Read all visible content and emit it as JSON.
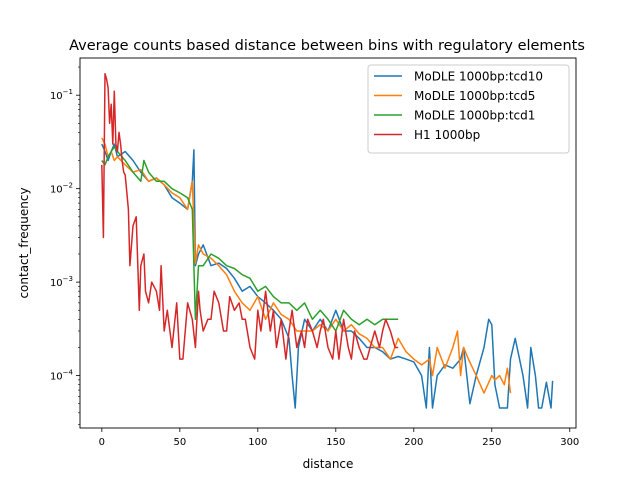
{
  "chart_data": {
    "type": "line",
    "title": "Average counts based distance between bins with regulatory elements",
    "xlabel": "distance",
    "ylabel": "contact_frequency",
    "xlim": [
      -14,
      304
    ],
    "ylim": [
      2.75e-05,
      0.25
    ],
    "yscale": "log",
    "grid": false,
    "legend": "top-right",
    "x_ticks": [
      {
        "value": 0,
        "label": "0"
      },
      {
        "value": 50,
        "label": "50"
      },
      {
        "value": 100,
        "label": "100"
      },
      {
        "value": 150,
        "label": "150"
      },
      {
        "value": 200,
        "label": "200"
      },
      {
        "value": 250,
        "label": "250"
      },
      {
        "value": 300,
        "label": "300"
      }
    ],
    "y_ticks": [
      {
        "value": 0.0001,
        "base": "10",
        "exp": "−4"
      },
      {
        "value": 0.001,
        "base": "10",
        "exp": "−3"
      },
      {
        "value": 0.01,
        "base": "10",
        "exp": "−2"
      },
      {
        "value": 0.1,
        "base": "10",
        "exp": "−1"
      }
    ],
    "series": [
      {
        "name": "MoDLE 1000bp:tcd10",
        "color": "#1f77b4",
        "x": [
          0,
          2,
          4,
          6,
          8,
          10,
          15,
          20,
          25,
          30,
          35,
          40,
          45,
          50,
          55,
          58,
          59,
          60,
          62,
          65,
          70,
          75,
          80,
          85,
          90,
          95,
          100,
          105,
          110,
          115,
          120,
          122,
          124,
          126,
          130,
          135,
          140,
          145,
          150,
          155,
          160,
          165,
          170,
          175,
          180,
          185,
          190,
          195,
          200,
          205,
          208,
          210,
          212,
          215,
          220,
          225,
          230,
          232,
          234,
          236,
          240,
          245,
          248,
          250,
          252,
          255,
          258,
          260,
          262,
          265,
          270,
          273,
          275,
          278,
          280,
          282,
          285,
          288,
          289
        ],
        "y": [
          0.03,
          0.025,
          0.02,
          0.025,
          0.03,
          0.022,
          0.025,
          0.02,
          0.015,
          0.012,
          0.013,
          0.011,
          0.008,
          0.007,
          0.006,
          0.012,
          0.026,
          0.0015,
          0.002,
          0.0025,
          0.0015,
          0.0016,
          0.0014,
          0.0011,
          0.0008,
          0.0009,
          0.0007,
          0.0006,
          0.0005,
          0.0004,
          0.00025,
          0.0001,
          4.5e-05,
          0.0002,
          0.0004,
          0.0003,
          0.0004,
          0.0003,
          0.0005,
          0.0003,
          0.0003,
          0.00025,
          0.0002,
          0.0002,
          0.00018,
          0.00015,
          0.00016,
          0.00015,
          0.00014,
          0.0001,
          4.5e-05,
          0.0002,
          4.5e-05,
          0.0001,
          0.00013,
          0.00012,
          0.00015,
          0.0002,
          0.0001,
          5e-05,
          0.0001,
          0.0002,
          0.0004,
          0.00035,
          8e-05,
          4.5e-05,
          4.5e-05,
          4.5e-05,
          0.00015,
          0.00025,
          0.0001,
          4.5e-05,
          0.0002,
          0.0001,
          4.5e-05,
          4.5e-05,
          8.5e-05,
          4.5e-05,
          8.8e-05
        ]
      },
      {
        "name": "MoDLE 1000bp:tcd5",
        "color": "#ff7f0e",
        "x": [
          0,
          2,
          4,
          6,
          8,
          10,
          15,
          20,
          25,
          30,
          35,
          40,
          45,
          50,
          55,
          58,
          60,
          62,
          65,
          70,
          75,
          80,
          85,
          90,
          95,
          100,
          105,
          110,
          115,
          120,
          125,
          130,
          135,
          140,
          145,
          150,
          155,
          160,
          165,
          170,
          175,
          180,
          185,
          190,
          195,
          200,
          205,
          210,
          212,
          215,
          220,
          225,
          228,
          230,
          232,
          235,
          240,
          245,
          250,
          252,
          255,
          258,
          260,
          262
        ],
        "y": [
          0.035,
          0.03,
          0.022,
          0.025,
          0.02,
          0.022,
          0.018,
          0.015,
          0.016,
          0.012,
          0.013,
          0.011,
          0.009,
          0.008,
          0.006,
          0.012,
          0.0016,
          0.0025,
          0.002,
          0.0018,
          0.0015,
          0.0012,
          0.0008,
          0.0006,
          0.0005,
          0.0007,
          0.0004,
          0.0006,
          0.00045,
          0.0004,
          0.0003,
          0.0003,
          0.0003,
          0.00035,
          0.0003,
          0.0004,
          0.0003,
          0.00035,
          0.00028,
          0.00025,
          0.0002,
          0.0002,
          0.00015,
          0.00025,
          0.00018,
          0.00015,
          0.00013,
          0.00015,
          0.0001,
          0.0002,
          0.00012,
          0.0002,
          0.0003,
          0.0001,
          0.0002,
          0.00015,
          0.0001,
          6.5e-05,
          0.0001,
          9e-05,
          0.0001,
          8e-05,
          0.00012,
          6.5e-05
        ]
      },
      {
        "name": "MoDLE 1000bp:tcd1",
        "color": "#2ca02c",
        "x": [
          0,
          2,
          4,
          6,
          8,
          10,
          15,
          20,
          25,
          27,
          30,
          35,
          40,
          45,
          50,
          55,
          58,
          60,
          62,
          65,
          70,
          75,
          80,
          85,
          90,
          95,
          100,
          105,
          110,
          115,
          120,
          125,
          130,
          135,
          140,
          145,
          150,
          155,
          160,
          165,
          170,
          175,
          180,
          185,
          190
        ],
        "y": [
          0.02,
          0.018,
          0.022,
          0.025,
          0.028,
          0.025,
          0.02,
          0.015,
          0.012,
          0.02,
          0.015,
          0.012,
          0.012,
          0.01,
          0.009,
          0.008,
          0.006,
          0.0004,
          0.0015,
          0.0015,
          0.002,
          0.0018,
          0.0015,
          0.0014,
          0.0012,
          0.0011,
          0.0008,
          0.0009,
          0.0007,
          0.0006,
          0.0006,
          0.0005,
          0.0006,
          0.0004,
          0.0005,
          0.0004,
          0.0003,
          0.0005,
          0.0004,
          0.00035,
          0.0004,
          0.00035,
          0.0004,
          0.0004,
          0.0004
        ]
      },
      {
        "name": "H1 1000bp",
        "color": "#d62728",
        "x": [
          0,
          1,
          2,
          3,
          4,
          5,
          6,
          7,
          8,
          9,
          10,
          11,
          12,
          13,
          14,
          15,
          17,
          18,
          20,
          22,
          24,
          25,
          27,
          28,
          30,
          32,
          35,
          37,
          38,
          40,
          42,
          45,
          48,
          50,
          52,
          55,
          58,
          60,
          62,
          63,
          65,
          68,
          70,
          72,
          75,
          78,
          80,
          82,
          85,
          88,
          90,
          92,
          95,
          98,
          100,
          102,
          105,
          108,
          110,
          112,
          115,
          118,
          120,
          122,
          125,
          128,
          130,
          132,
          135,
          138,
          140,
          142,
          145,
          148,
          150,
          152,
          155,
          158,
          160,
          162,
          165,
          168,
          170,
          172,
          175,
          178,
          180,
          182,
          185,
          188,
          190
        ],
        "y": [
          0.018,
          0.003,
          0.17,
          0.15,
          0.12,
          0.05,
          0.08,
          0.03,
          0.11,
          0.03,
          0.025,
          0.04,
          0.03,
          0.02,
          0.015,
          0.014,
          0.006,
          0.0015,
          0.004,
          0.005,
          0.0005,
          0.0015,
          0.002,
          0.0008,
          0.0006,
          0.001,
          0.0008,
          0.0005,
          0.0015,
          0.0003,
          0.0005,
          0.0002,
          0.0006,
          0.00015,
          0.00015,
          0.0006,
          0.0004,
          0.0002,
          0.0008,
          0.0005,
          0.0003,
          0.0004,
          0.0004,
          0.0008,
          0.0006,
          0.0003,
          0.0003,
          0.0007,
          0.0005,
          0.0006,
          0.0004,
          0.0004,
          0.0002,
          0.00015,
          0.0005,
          0.0003,
          0.0008,
          0.0003,
          0.0005,
          0.0002,
          0.0004,
          0.00015,
          0.0003,
          0.0005,
          0.0002,
          0.0003,
          0.0002,
          0.0004,
          0.0003,
          0.0002,
          0.0003,
          0.0004,
          0.0002,
          0.00015,
          0.0003,
          0.00015,
          0.0004,
          0.0002,
          0.00015,
          0.0003,
          0.0002,
          0.00015,
          0.00015,
          0.0002,
          0.0003,
          0.0002,
          0.0003,
          0.0004,
          0.0003,
          0.0002,
          0.0002
        ]
      }
    ]
  }
}
